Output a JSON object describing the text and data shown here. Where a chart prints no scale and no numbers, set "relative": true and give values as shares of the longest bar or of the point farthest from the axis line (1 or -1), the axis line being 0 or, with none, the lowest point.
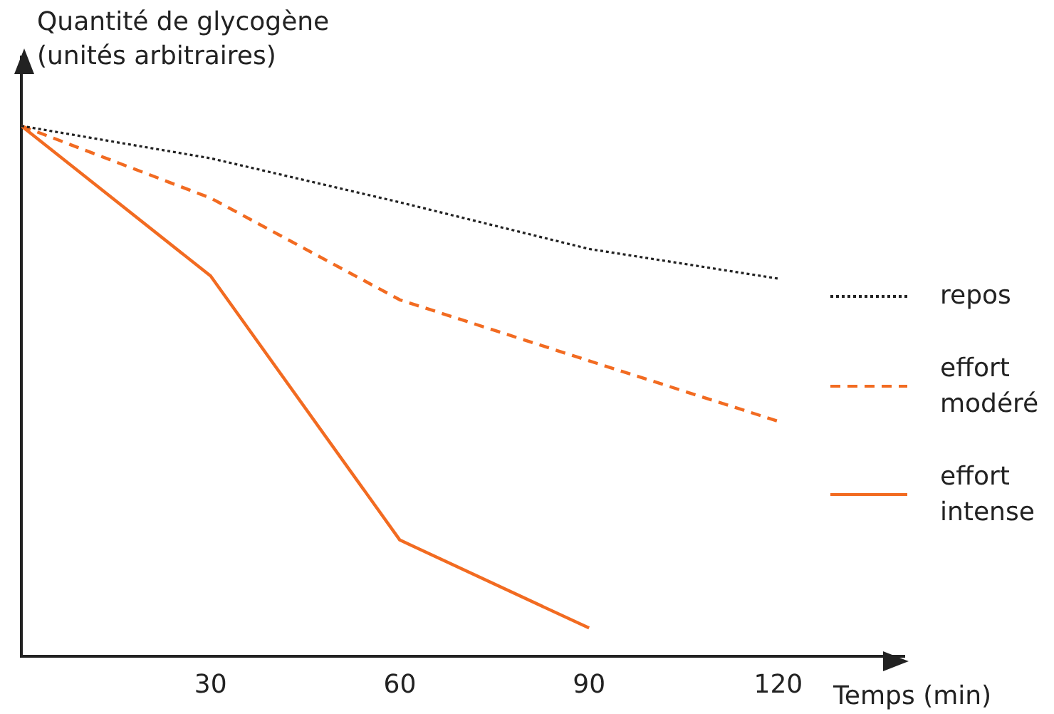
{
  "chart_data": {
    "type": "line",
    "relative": true,
    "ylabel": "Quantité de glycogène (unités arbitraires)",
    "xlabel": "Temps (min)",
    "x": [
      0,
      30,
      60,
      90,
      120
    ],
    "xlim": [
      0,
      140
    ],
    "xticks": [
      30,
      60,
      90,
      120
    ],
    "grid": false,
    "legend": "right",
    "marker": "none",
    "series": [
      {
        "name": "repos",
        "color": "#222222",
        "line_style": "dotted",
        "values": [
          1,
          0.939,
          0.856,
          0.768,
          0.712
        ]
      },
      {
        "name": "effort modéré",
        "color": "#f26b21",
        "line_style": "dashed",
        "values": [
          1,
          0.864,
          0.672,
          0.557,
          0.443
        ]
      },
      {
        "name": "effort intense",
        "color": "#f26b21",
        "line_style": "solid",
        "x": [
          0,
          30,
          60,
          90
        ],
        "values": [
          1,
          0.717,
          0.219,
          0.053
        ]
      }
    ]
  }
}
